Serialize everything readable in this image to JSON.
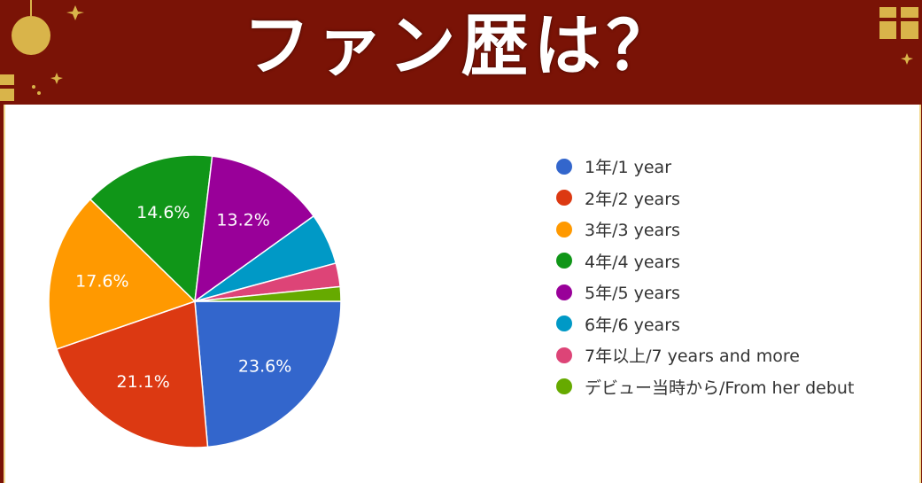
{
  "page": {
    "title": "ファン歴は？"
  },
  "chart_data": {
    "type": "pie",
    "categories": [
      "1年/1 year",
      "2年/2 years",
      "3年/3 years",
      "4年/4 years",
      "5年/5 years",
      "6年/6 years",
      "7年以上/7 years and more",
      "デビュー当時から/From her debut"
    ],
    "values": [
      23.6,
      21.1,
      17.6,
      14.6,
      13.2,
      5.7,
      2.6,
      1.6
    ],
    "data_labels": [
      "23.6%",
      "21.1%",
      "17.6%",
      "14.6%",
      "13.2%",
      "",
      "",
      ""
    ],
    "colors": [
      "#3366cc",
      "#dc3912",
      "#ff9900",
      "#109618",
      "#990099",
      "#0099c6",
      "#dd4477",
      "#66aa00"
    ],
    "start": "3 o'clock",
    "direction": "clockwise",
    "legend_position": "right"
  }
}
